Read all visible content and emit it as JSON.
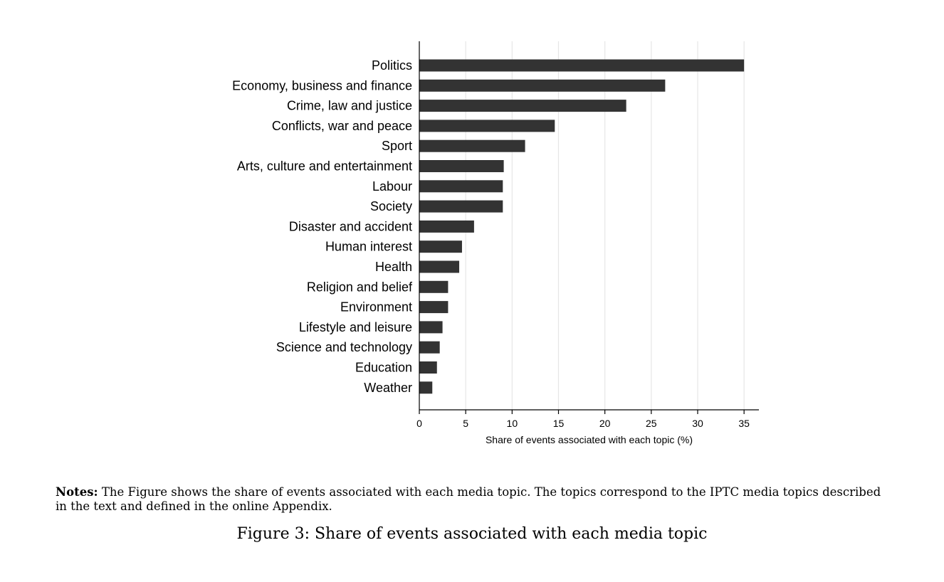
{
  "chart_data": {
    "type": "bar",
    "orientation": "horizontal",
    "categories": [
      "Politics",
      "Economy, business and finance",
      "Crime, law and justice",
      "Conflicts, war and peace",
      "Sport",
      "Arts, culture and entertainment",
      "Labour",
      "Society",
      "Disaster and accident",
      "Human interest",
      "Health",
      "Religion and belief",
      "Environment",
      "Lifestyle and leisure",
      "Science and technology",
      "Education",
      "Weather"
    ],
    "values": [
      35.0,
      26.5,
      22.3,
      14.6,
      11.4,
      9.1,
      9.0,
      9.0,
      5.9,
      4.6,
      4.3,
      3.1,
      3.1,
      2.5,
      2.2,
      1.9,
      1.4
    ],
    "xlabel": "Share of events associated with each topic (%)",
    "xlim": [
      0,
      36.6
    ],
    "xticks": [
      0,
      5,
      10,
      15,
      20,
      25,
      30,
      35
    ],
    "grid": true,
    "bar_color": "#333333",
    "grid_color": "#e6e6e6"
  },
  "notes": {
    "label": "Notes:",
    "text": " The Figure shows the share of events associated with each media topic. The topics correspond to the IPTC media topics described in the text and defined in the online Appendix."
  },
  "caption": "Figure 3: Share of events associated with each media topic"
}
